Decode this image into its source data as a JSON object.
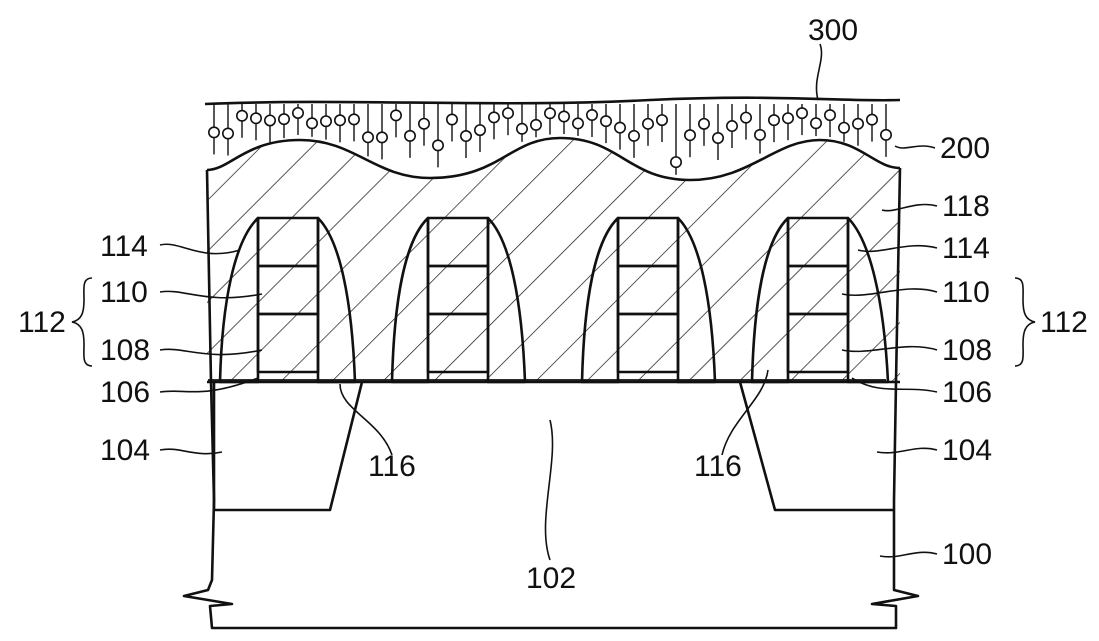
{
  "labels": {
    "l300": "300",
    "l200": "200",
    "l118": "118",
    "l114_left": "114",
    "l114_right": "114",
    "l110_left": "110",
    "l110_right": "110",
    "l112_left": "112",
    "l112_right": "112",
    "l108_left": "108",
    "l108_right": "108",
    "l106_left": "106",
    "l106_right": "106",
    "l104_left": "104",
    "l104_right": "104",
    "l116_left": "116",
    "l116_right": "116",
    "l102": "102",
    "l100": "100"
  },
  "colors": {
    "line": "#111111",
    "background": "#ffffff"
  }
}
